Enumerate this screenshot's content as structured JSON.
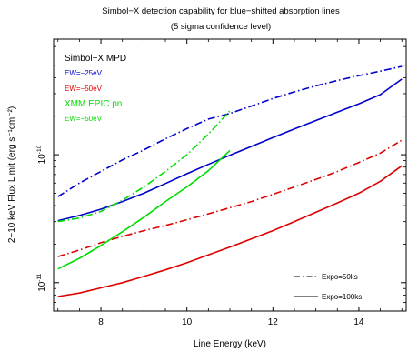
{
  "chart_data": {
    "type": "line",
    "title": "Simbol−X detection capability for blue−shifted absorption lines",
    "subtitle": "(5 sigma confidence level)",
    "xlabel": "Line Energy (keV)",
    "ylabel": "2−10 keV Flux Limit (erg s⁻¹cm⁻²)",
    "xlim": [
      6.9,
      15.1
    ],
    "ylim": [
      6e-12,
      8e-10
    ],
    "yscale": "log",
    "x_ticks": [
      8,
      10,
      12,
      14
    ],
    "x_tick_labels": [
      "8",
      "10",
      "12",
      "14"
    ],
    "y_ticks": [
      1e-11,
      1e-10
    ],
    "y_tick_labels": [
      {
        "base": "10",
        "exp": "-11"
      },
      {
        "base": "10",
        "exp": "-10"
      }
    ],
    "legend_top_left": {
      "instrument_a": "Simbol−X MPD",
      "items_a": [
        {
          "label": "EW=−25eV",
          "color": "#0000cc"
        },
        {
          "label": "EW=−50eV",
          "color": "#dd0000"
        }
      ],
      "instrument_b": "XMM EPIC pn",
      "items_b": [
        {
          "label": "EW=−50eV",
          "color": "#00dd00"
        }
      ]
    },
    "legend_bottom_right": [
      {
        "label": "Expo=50ks",
        "style": "dash-dot"
      },
      {
        "label": "Expo=100ks",
        "style": "solid"
      }
    ],
    "series": [
      {
        "color": "#0000cc",
        "style": "dash-dot",
        "x": [
          7.0,
          7.5,
          8.0,
          8.5,
          9.0,
          9.5,
          10.0,
          10.5,
          11.0,
          11.5,
          12.0,
          12.5,
          13.0,
          13.5,
          14.0,
          14.5,
          15.0
        ],
        "y": [
          4.7e-11,
          6e-11,
          7.4e-11,
          9.1e-11,
          1.09e-10,
          1.33e-10,
          1.6e-10,
          1.9e-10,
          2.1e-10,
          2.4e-10,
          2.75e-10,
          3.1e-10,
          3.45e-10,
          3.8e-10,
          4.15e-10,
          4.5e-10,
          4.9e-10
        ]
      },
      {
        "color": "#0000cc",
        "style": "solid",
        "x": [
          7.0,
          7.5,
          8.0,
          8.5,
          9.0,
          9.5,
          10.0,
          10.5,
          11.0,
          11.5,
          12.0,
          12.5,
          13.0,
          13.5,
          14.0,
          14.5,
          15.0
        ],
        "y": [
          3.05e-11,
          3.35e-11,
          3.75e-11,
          4.3e-11,
          5e-11,
          5.95e-11,
          7.1e-11,
          8.4e-11,
          9.9e-11,
          1.16e-10,
          1.36e-10,
          1.59e-10,
          1.85e-10,
          2.15e-10,
          2.5e-10,
          2.95e-10,
          3.9e-10
        ]
      },
      {
        "color": "#dd0000",
        "style": "dash-dot",
        "x": [
          7.0,
          7.5,
          8.0,
          8.5,
          9.0,
          9.5,
          10.0,
          10.5,
          11.0,
          11.5,
          12.0,
          12.5,
          13.0,
          13.5,
          14.0,
          14.5,
          15.0
        ],
        "y": [
          1.6e-11,
          1.8e-11,
          2.05e-11,
          2.3e-11,
          2.55e-11,
          2.8e-11,
          3.1e-11,
          3.45e-11,
          3.85e-11,
          4.3e-11,
          4.9e-11,
          5.6e-11,
          6.4e-11,
          7.4e-11,
          8.7e-11,
          1.03e-10,
          1.3e-10
        ]
      },
      {
        "color": "#dd0000",
        "style": "solid",
        "x": [
          7.0,
          7.5,
          8.0,
          8.5,
          9.0,
          9.5,
          10.0,
          10.5,
          11.0,
          11.5,
          12.0,
          12.5,
          13.0,
          13.5,
          14.0,
          14.5,
          15.0
        ],
        "y": [
          7.8e-12,
          8.3e-12,
          9.1e-12,
          1e-11,
          1.12e-11,
          1.26e-11,
          1.43e-11,
          1.65e-11,
          1.9e-11,
          2.2e-11,
          2.55e-11,
          3e-11,
          3.55e-11,
          4.2e-11,
          5e-11,
          6.2e-11,
          8.2e-11
        ]
      },
      {
        "color": "#00dd00",
        "style": "dash-dot",
        "x": [
          7.0,
          7.5,
          8.0,
          8.5,
          9.0,
          9.5,
          10.0,
          10.5,
          11.0
        ],
        "y": [
          3e-11,
          3.2e-11,
          3.6e-11,
          4.4e-11,
          5.6e-11,
          7.4e-11,
          1e-10,
          1.45e-10,
          2.2e-10
        ]
      },
      {
        "color": "#00dd00",
        "style": "solid",
        "x": [
          7.0,
          7.5,
          8.0,
          8.5,
          9.0,
          9.5,
          10.0,
          10.5,
          11.0
        ],
        "y": [
          1.28e-11,
          1.55e-11,
          1.95e-11,
          2.5e-11,
          3.25e-11,
          4.3e-11,
          5.6e-11,
          7.5e-11,
          1.08e-10
        ]
      }
    ]
  }
}
